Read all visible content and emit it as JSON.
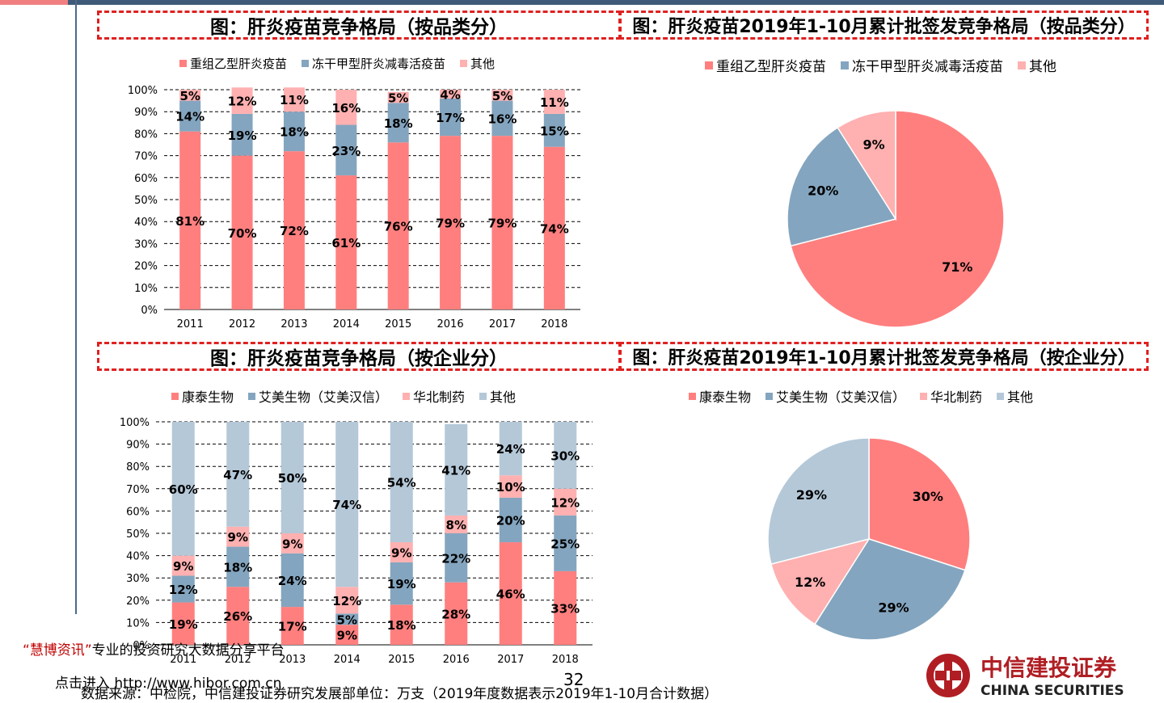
{
  "colors": {
    "c1": "#ff7f7f",
    "c2": "#84a5bf",
    "c3": "#ffb0b0",
    "c4": "#b4c8d8",
    "grid": "#000000",
    "accent": "#e02020",
    "brand": "#b01e23"
  },
  "titles": {
    "t1": "图：肝炎疫苗竞争格局（按品类分）",
    "t2": "图：肝炎疫苗2019年1-10月累计批签发竞争格局（按品类分）",
    "t3": "图：肝炎疫苗竞争格局（按企业分）",
    "t4": "图：肝炎疫苗2019年1-10月累计批签发竞争格局（按企业分）"
  },
  "legend_product": [
    "重组乙型肝炎疫苗",
    "冻干甲型肝炎减毒活疫苗",
    "其他"
  ],
  "legend_company": [
    "康泰生物",
    "艾美生物（艾美汉信）",
    "华北制药",
    "其他"
  ],
  "chart_data": [
    {
      "type": "bar",
      "stacked": true,
      "percent": true,
      "categories": [
        "2011",
        "2012",
        "2013",
        "2014",
        "2015",
        "2016",
        "2017",
        "2018"
      ],
      "series": [
        {
          "name": "重组乙型肝炎疫苗",
          "values": [
            81,
            70,
            72,
            61,
            76,
            79,
            79,
            74
          ]
        },
        {
          "name": "冻干甲型肝炎减毒活疫苗",
          "values": [
            14,
            19,
            18,
            23,
            18,
            17,
            16,
            15
          ]
        },
        {
          "name": "其他",
          "values": [
            5,
            12,
            11,
            16,
            5,
            4,
            5,
            11
          ]
        }
      ],
      "ylim": [
        0,
        100
      ],
      "yticks": [
        "0%",
        "10%",
        "20%",
        "30%",
        "40%",
        "50%",
        "60%",
        "70%",
        "80%",
        "90%",
        "100%"
      ],
      "legend_position": "top"
    },
    {
      "type": "pie",
      "labels": [
        "重组乙型肝炎疫苗",
        "冻干甲型肝炎减毒活疫苗",
        "其他"
      ],
      "values": [
        71,
        20,
        9
      ],
      "legend_position": "top"
    },
    {
      "type": "bar",
      "stacked": true,
      "percent": true,
      "categories": [
        "2011",
        "2012",
        "2013",
        "2014",
        "2015",
        "2016",
        "2017",
        "2018"
      ],
      "series": [
        {
          "name": "康泰生物",
          "values": [
            19,
            26,
            17,
            9,
            18,
            28,
            46,
            33
          ]
        },
        {
          "name": "艾美生物（艾美汉信）",
          "values": [
            12,
            18,
            24,
            5,
            19,
            22,
            20,
            25
          ]
        },
        {
          "name": "华北制药",
          "values": [
            9,
            9,
            9,
            12,
            9,
            8,
            10,
            12
          ]
        },
        {
          "name": "其他",
          "values": [
            60,
            47,
            50,
            74,
            54,
            41,
            24,
            30
          ]
        }
      ],
      "ylim": [
        0,
        100
      ],
      "yticks": [
        "0%",
        "10%",
        "20%",
        "30%",
        "40%",
        "50%",
        "60%",
        "70%",
        "80%",
        "90%",
        "100%"
      ],
      "legend_position": "top"
    },
    {
      "type": "pie",
      "labels": [
        "康泰生物",
        "艾美生物（艾美汉信）",
        "华北制药",
        "其他"
      ],
      "values": [
        30,
        29,
        12,
        29
      ],
      "legend_position": "top"
    }
  ],
  "footer": {
    "hibor_quote_open": "“",
    "hibor_name": "慧博资讯",
    "hibor_quote_close": "”",
    "hibor_slogan": "专业的投资研究大数据分享平台",
    "hibor_link": "点击进入 http://www.hibor.com.cn",
    "page_number": "32",
    "source": "数据来源：中检院，中信建投证券研究发展部单位：万支（2019年度数据表示2019年1-10月合计数据）"
  },
  "brand": {
    "name": "中信建投证券",
    "english": "CHINA SECURITIES"
  }
}
